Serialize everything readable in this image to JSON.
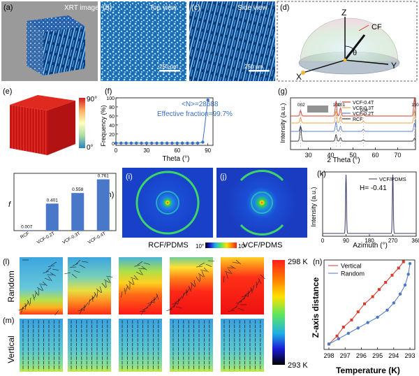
{
  "panels": {
    "a": {
      "label": "(a)",
      "caption": "XRT image"
    },
    "b": {
      "label": "(b)",
      "caption": "Top view",
      "scale_bar": "250 μm"
    },
    "c": {
      "label": "(c)",
      "caption": "Side view",
      "scale_bar": "250 μm"
    },
    "d": {
      "label": "(d)",
      "axis_z": "Z",
      "axis_x": "X",
      "axis_y": "Y",
      "fiber": "CF",
      "angle": "θ"
    },
    "e": {
      "label": "(e)",
      "colorbar_max": "90°",
      "colorbar_min": "0°"
    },
    "h": {
      "label": "(h)"
    },
    "i": {
      "label": "(i)",
      "caption": "RCF/PDMS"
    },
    "j": {
      "label": "(j)",
      "caption": "VCF/PDMS"
    },
    "ij_colorbar": {
      "low": "10°",
      "high": "10⁶"
    },
    "k": {
      "label": "(k)"
    },
    "l": {
      "label": "(l)",
      "row_label": "Random"
    },
    "m": {
      "label": "(m)",
      "row_label": "Vertical"
    },
    "lm_colorbar": {
      "top": "298 K",
      "bottom": "293 K"
    },
    "n": {
      "label": "(n)"
    }
  },
  "chart_data": [
    {
      "id": "f",
      "label": "(f)",
      "type": "line",
      "xlabel": "Theta (°)",
      "ylabel": "Frequency (%)",
      "xlim": [
        0,
        95
      ],
      "ylim": [
        -5,
        100
      ],
      "xticks": [
        "0",
        "30",
        "60",
        "90"
      ],
      "yticks": [
        "0",
        "20",
        "40",
        "60",
        "80",
        "100"
      ],
      "annotations": [
        "<N>=28688",
        "Effective fraction=99.7%"
      ],
      "x": [
        0,
        5,
        10,
        15,
        20,
        25,
        30,
        35,
        40,
        45,
        50,
        55,
        60,
        65,
        70,
        75,
        80,
        85,
        90
      ],
      "y": [
        0,
        0,
        0,
        0,
        0,
        0,
        0,
        0,
        0,
        0,
        0,
        0,
        0,
        0,
        0,
        0,
        0,
        2,
        95
      ]
    },
    {
      "id": "g",
      "label": "(g)",
      "type": "line",
      "xlabel": "2 Theta (°)",
      "ylabel": "Intensity (a.u.)",
      "xlim": [
        22,
        78
      ],
      "xticks": [
        "30",
        "40",
        "50",
        "60",
        "70"
      ],
      "legend": [
        "VCF-0.4T",
        "VCF-0.3T",
        "VCF-0.2T",
        "RCF"
      ],
      "legend_colors": [
        "#d83a2b",
        "#f0a050",
        "#5a7fd8",
        "#333333"
      ],
      "peak_labels": [
        "002",
        "100",
        "101",
        "004",
        "110"
      ],
      "peak_positions": [
        26.5,
        42.4,
        44.4,
        54.6,
        77.5
      ]
    },
    {
      "id": "h",
      "type": "bar",
      "ylabel": "f",
      "categories": [
        "RCF",
        "VCF-0.2T",
        "VCF-0.3T",
        "VCF-0.4T"
      ],
      "values": [
        0.007,
        0.401,
        0.558,
        0.761
      ],
      "value_labels": [
        "0.007",
        "0.401",
        "0.558",
        "0.761"
      ],
      "ylim": [
        0,
        0.85
      ]
    },
    {
      "id": "k",
      "type": "line",
      "xlabel": "Azimuth (°)",
      "ylabel": "Intensity (a.u.)",
      "xlim": [
        0,
        360
      ],
      "xticks": [
        "0",
        "90",
        "180",
        "270",
        "360"
      ],
      "legend": [
        "VCF/PDMS"
      ],
      "annotation": "H= -0.41",
      "peaks": [
        90,
        270
      ]
    },
    {
      "id": "n",
      "type": "line",
      "xlabel": "Temperature (K)",
      "ylabel": "Z-axis distance",
      "xlim": [
        298.3,
        292.7
      ],
      "xticks": [
        "298",
        "297",
        "296",
        "295",
        "294",
        "293"
      ],
      "series": [
        {
          "name": "Vertical",
          "color": "#d83a2b",
          "x": [
            298,
            297.5,
            297.1,
            296.6,
            296.2,
            295.8,
            295.3,
            294.9,
            294.5,
            294.1,
            293.7,
            293.4
          ],
          "y": [
            0.06,
            0.15,
            0.25,
            0.33,
            0.42,
            0.51,
            0.59,
            0.67,
            0.75,
            0.83,
            0.91,
            0.98
          ]
        },
        {
          "name": "Random",
          "color": "#4a78c8",
          "x": [
            298,
            297.4,
            296.8,
            296.2,
            295.6,
            295.0,
            294.4,
            294.0,
            293.6,
            293.3,
            293.1,
            293.0
          ],
          "y": [
            0.06,
            0.12,
            0.18,
            0.24,
            0.3,
            0.36,
            0.44,
            0.52,
            0.62,
            0.72,
            0.84,
            0.96
          ]
        }
      ]
    }
  ]
}
